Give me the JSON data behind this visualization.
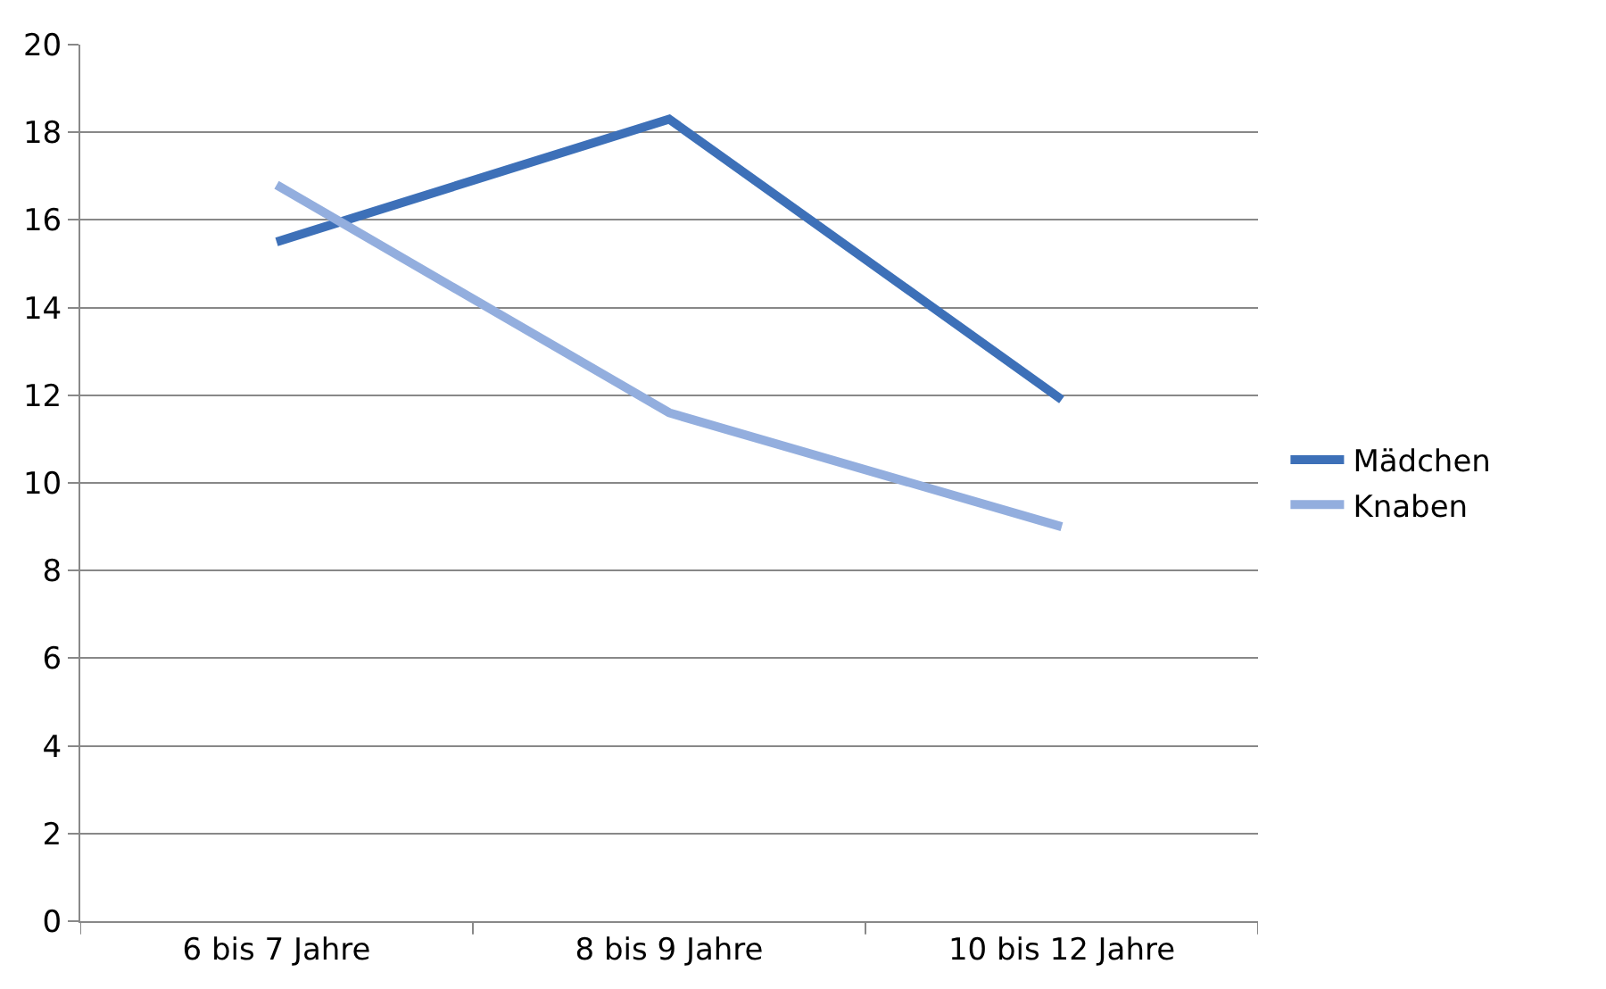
{
  "chart_data": {
    "type": "line",
    "categories": [
      "6 bis 7 Jahre",
      "8 bis 9 Jahre",
      "10 bis 12 Jahre"
    ],
    "series": [
      {
        "name": "Mädchen",
        "color": "#3d70b8",
        "values": [
          15.5,
          18.3,
          11.9
        ]
      },
      {
        "name": "Knaben",
        "color": "#93aede",
        "values": [
          16.8,
          11.6,
          9.0
        ]
      }
    ],
    "ylim": [
      0,
      20
    ],
    "yticks": [
      0,
      2,
      4,
      6,
      8,
      10,
      12,
      14,
      16,
      18,
      20
    ],
    "grid": "y",
    "legend": "right",
    "marker": "none",
    "line_style": "solid"
  }
}
